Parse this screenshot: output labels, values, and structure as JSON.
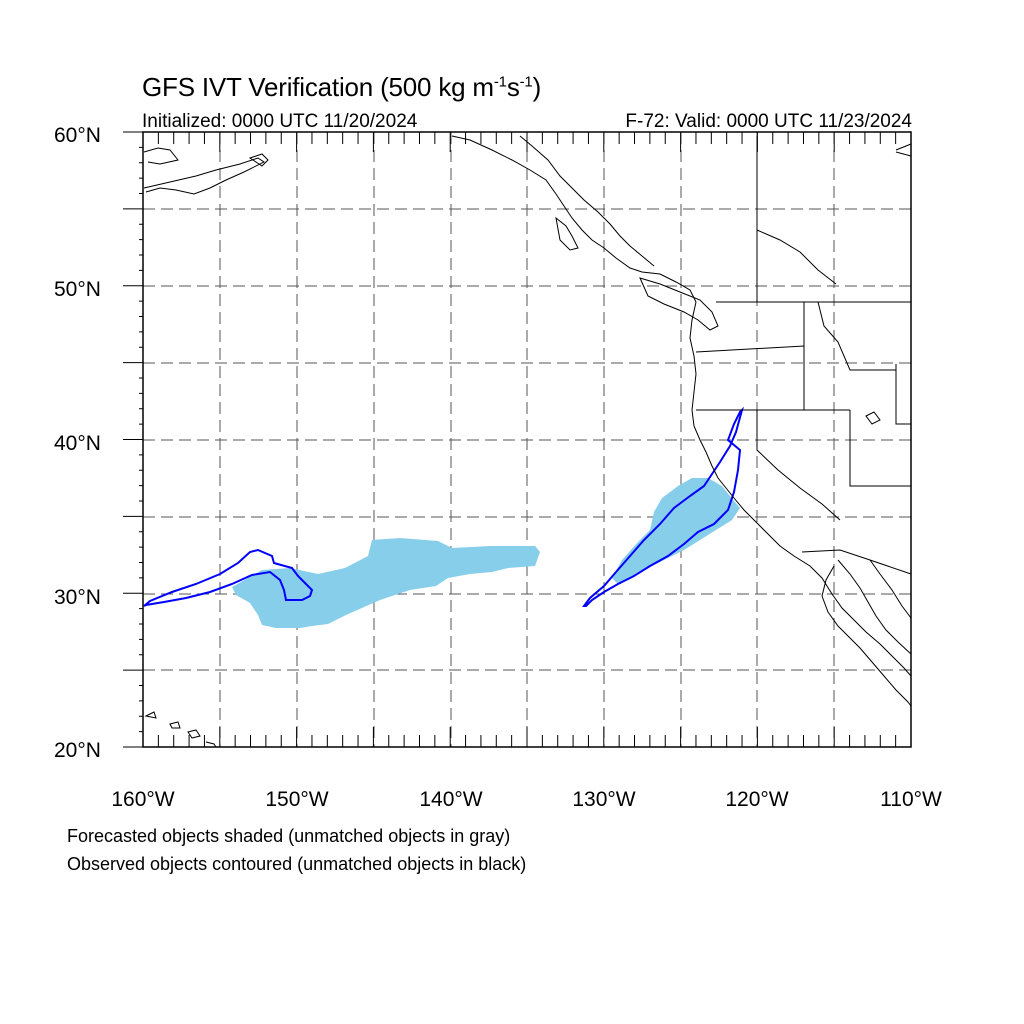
{
  "header": {
    "title_main": "GFS IVT Verification (500 kg m",
    "title_sup1": "-1",
    "title_mid": "s",
    "title_sup2": "-1",
    "title_close": ")",
    "init_label": "Initialized: 0000 UTC 11/20/2024",
    "valid_label": "F-72: Valid: 0000 UTC 11/23/2024"
  },
  "map": {
    "lon_range": [
      -160,
      -110
    ],
    "lat_range": [
      20,
      60
    ],
    "lat_labels": [
      "20°N",
      "30°N",
      "40°N",
      "50°N",
      "60°N"
    ],
    "lon_labels": [
      "160°W",
      "150°W",
      "140°W",
      "130°W",
      "120°W",
      "110°W"
    ],
    "forecast_color": "#87ceeb",
    "observed_color": "#0000ff",
    "coast_color": "#000000"
  },
  "legend": {
    "line1": "Forecasted objects shaded (unmatched objects in gray)",
    "line2": "Observed objects contoured (unmatched objects in black)"
  }
}
